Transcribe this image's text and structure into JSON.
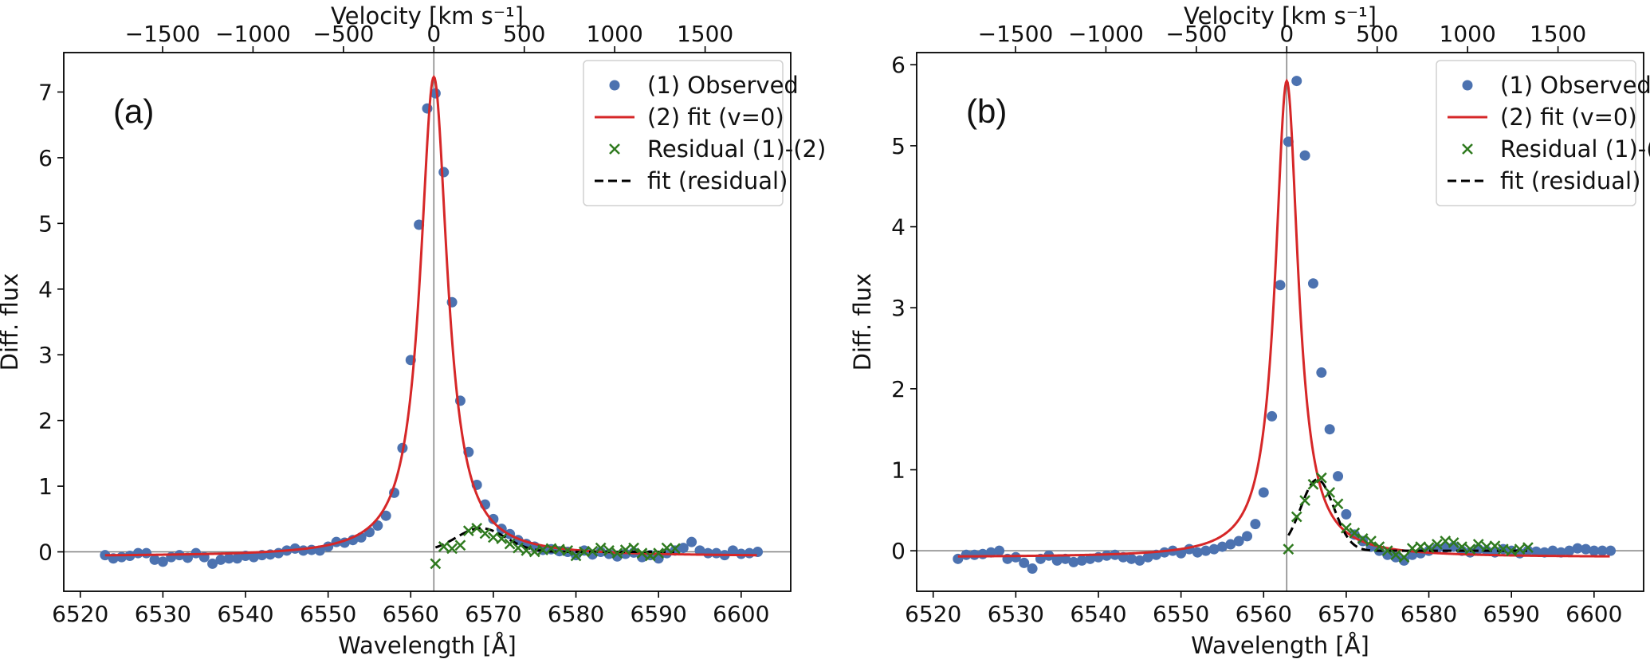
{
  "figure": {
    "x_label": "Wavelength [Å]",
    "y_label": "Diff. flux",
    "top_axis_label": "Velocity [km s⁻¹]",
    "x_ticks": [
      6520,
      6530,
      6540,
      6550,
      6560,
      6570,
      6580,
      6590,
      6600
    ],
    "top_ticks": [
      -1500,
      -1000,
      -500,
      0,
      500,
      1000,
      1500
    ],
    "rest_wavelength": 6562.8,
    "legend": {
      "observed": "(1) Observed",
      "fit": "(2) fit (v=0)",
      "residual": "Residual (1)-(2)",
      "residual_fit": "fit (residual)"
    }
  },
  "colors": {
    "observed": "#4C72B0",
    "fit": "#D62728",
    "residual": "#2F7A1F",
    "residual_fit": "#000000",
    "reference_line": "#808080"
  },
  "chart_data": [
    {
      "type": "line",
      "panel": "(a)",
      "xlim": [
        6518,
        6606
      ],
      "ylim": [
        -0.6,
        7.6
      ],
      "yticks": [
        0,
        1,
        2,
        3,
        4,
        5,
        6,
        7
      ],
      "lorentz": {
        "amplitude": 7.3,
        "center": 6562.8,
        "hwhm": 2.0,
        "offset": -0.07
      },
      "residual_fit": {
        "amplitude": 0.36,
        "center": 6568.5,
        "sigma": 3.0
      },
      "observed": {
        "x": [
          6523,
          6524,
          6525,
          6526,
          6527,
          6528,
          6529,
          6530,
          6531,
          6532,
          6533,
          6534,
          6535,
          6536,
          6537,
          6538,
          6539,
          6540,
          6541,
          6542,
          6543,
          6544,
          6545,
          6546,
          6547,
          6548,
          6549,
          6550,
          6551,
          6552,
          6553,
          6554,
          6555,
          6556,
          6557,
          6558,
          6559,
          6560,
          6561,
          6562,
          6563,
          6564,
          6565,
          6566,
          6567,
          6568,
          6569,
          6570,
          6571,
          6572,
          6573,
          6574,
          6575,
          6576,
          6577,
          6578,
          6579,
          6580,
          6581,
          6582,
          6583,
          6584,
          6585,
          6586,
          6587,
          6588,
          6589,
          6590,
          6591,
          6592,
          6593,
          6594,
          6595,
          6596,
          6597,
          6598,
          6599,
          6600,
          6601,
          6602
        ],
        "y": [
          -0.05,
          -0.1,
          -0.08,
          -0.06,
          -0.02,
          -0.02,
          -0.12,
          -0.15,
          -0.08,
          -0.05,
          -0.09,
          -0.02,
          -0.08,
          -0.18,
          -0.12,
          -0.1,
          -0.1,
          -0.06,
          -0.08,
          -0.05,
          -0.04,
          -0.02,
          0.02,
          0.05,
          0.02,
          0.03,
          0.02,
          0.08,
          0.15,
          0.14,
          0.18,
          0.22,
          0.3,
          0.4,
          0.55,
          0.9,
          1.58,
          2.92,
          4.98,
          6.75,
          6.98,
          5.78,
          3.8,
          2.3,
          1.52,
          1.02,
          0.72,
          0.5,
          0.35,
          0.27,
          0.18,
          0.12,
          0.08,
          0.03,
          0.04,
          0.01,
          0.0,
          -0.05,
          0.02,
          -0.04,
          0.0,
          -0.03,
          -0.07,
          -0.03,
          -0.01,
          -0.08,
          -0.05,
          -0.1,
          -0.02,
          0.02,
          0.06,
          0.15,
          0.02,
          -0.02,
          -0.02,
          -0.05,
          0.02,
          -0.03,
          -0.02,
          0.0
        ]
      },
      "residual": {
        "x": [
          6563,
          6564,
          6565,
          6566,
          6567,
          6568,
          6569,
          6570,
          6571,
          6572,
          6573,
          6574,
          6575,
          6576,
          6577,
          6578,
          6579,
          6580,
          6581,
          6582,
          6583,
          6584,
          6585,
          6586,
          6587,
          6588,
          6589,
          6590,
          6591,
          6592
        ],
        "y": [
          -0.18,
          0.08,
          0.05,
          0.1,
          0.32,
          0.36,
          0.28,
          0.22,
          0.2,
          0.12,
          0.06,
          0.02,
          0.0,
          0.03,
          0.05,
          0.04,
          0.02,
          -0.06,
          0.0,
          0.01,
          0.06,
          0.02,
          -0.02,
          0.03,
          0.06,
          -0.02,
          -0.06,
          -0.02,
          0.06,
          0.05
        ]
      }
    },
    {
      "type": "line",
      "panel": "(b)",
      "xlim": [
        6518,
        6606
      ],
      "ylim": [
        -0.5,
        6.15
      ],
      "yticks": [
        0,
        1,
        2,
        3,
        4,
        5,
        6
      ],
      "lorentz": {
        "amplitude": 5.88,
        "center": 6562.8,
        "hwhm": 1.7,
        "offset": -0.08
      },
      "residual_fit": {
        "amplitude": 0.88,
        "center": 6566.5,
        "sigma": 2.0
      },
      "observed": {
        "x": [
          6523,
          6524,
          6525,
          6526,
          6527,
          6528,
          6529,
          6530,
          6531,
          6532,
          6533,
          6534,
          6535,
          6536,
          6537,
          6538,
          6539,
          6540,
          6541,
          6542,
          6543,
          6544,
          6545,
          6546,
          6547,
          6548,
          6549,
          6550,
          6551,
          6552,
          6553,
          6554,
          6555,
          6556,
          6557,
          6558,
          6559,
          6560,
          6561,
          6562,
          6563,
          6564,
          6565,
          6566,
          6567,
          6568,
          6569,
          6570,
          6571,
          6572,
          6573,
          6574,
          6575,
          6576,
          6577,
          6578,
          6579,
          6580,
          6581,
          6582,
          6583,
          6584,
          6585,
          6586,
          6587,
          6588,
          6589,
          6590,
          6591,
          6592,
          6593,
          6594,
          6595,
          6596,
          6597,
          6598,
          6599,
          6600,
          6601,
          6602
        ],
        "y": [
          -0.1,
          -0.05,
          -0.05,
          -0.04,
          -0.02,
          0.0,
          -0.1,
          -0.08,
          -0.15,
          -0.22,
          -0.1,
          -0.06,
          -0.12,
          -0.1,
          -0.14,
          -0.12,
          -0.1,
          -0.08,
          -0.06,
          -0.05,
          -0.08,
          -0.1,
          -0.12,
          -0.08,
          -0.05,
          -0.02,
          0.0,
          -0.03,
          0.02,
          -0.02,
          0.0,
          0.02,
          0.05,
          0.08,
          0.12,
          0.18,
          0.33,
          0.72,
          1.66,
          3.28,
          5.05,
          5.8,
          4.88,
          3.3,
          2.2,
          1.5,
          0.92,
          0.45,
          0.2,
          0.12,
          0.05,
          0.0,
          -0.05,
          -0.08,
          -0.12,
          -0.05,
          -0.03,
          0.0,
          0.03,
          0.04,
          0.05,
          0.0,
          -0.02,
          0.02,
          0.0,
          -0.02,
          0.02,
          0.0,
          -0.03,
          0.0,
          -0.01,
          -0.02,
          0.0,
          -0.02,
          0.0,
          0.03,
          0.02,
          0.0,
          0.0,
          0.0
        ]
      },
      "residual": {
        "x": [
          6563,
          6564,
          6565,
          6566,
          6567,
          6568,
          6569,
          6570,
          6571,
          6572,
          6573,
          6574,
          6575,
          6576,
          6577,
          6578,
          6579,
          6580,
          6581,
          6582,
          6583,
          6584,
          6585,
          6586,
          6587,
          6588,
          6589,
          6590,
          6591,
          6592
        ],
        "y": [
          0.02,
          0.42,
          0.62,
          0.82,
          0.9,
          0.72,
          0.58,
          0.28,
          0.22,
          0.15,
          0.12,
          0.05,
          0.0,
          -0.05,
          -0.08,
          0.03,
          0.05,
          0.04,
          0.08,
          0.12,
          0.1,
          0.05,
          0.02,
          0.08,
          0.05,
          0.06,
          0.02,
          0.0,
          0.02,
          0.04
        ]
      }
    }
  ]
}
